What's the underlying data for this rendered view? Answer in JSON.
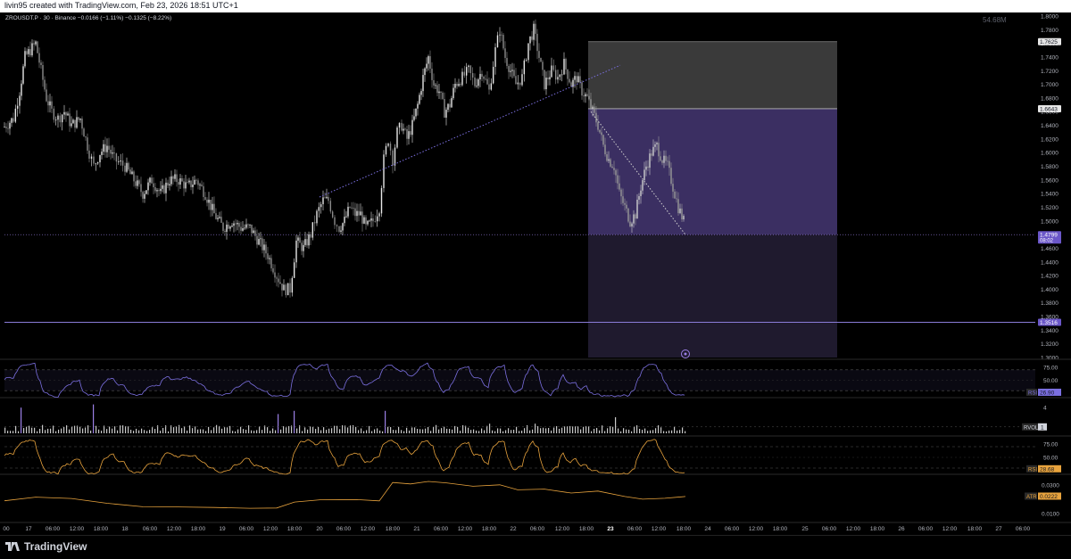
{
  "header": {
    "attribution": "livin95 created with TradingView.com, Feb 23, 2026 18:51 UTC+1"
  },
  "footer": {
    "brand": "TradingView"
  },
  "chart_data": [
    {
      "type": "candlestick",
      "symbol_line": {
        "symbol": "ZROUSDT.P",
        "interval": "30",
        "exchange": "Binance",
        "change": "−0.0166 (−1.11%)",
        "change_period": "−0.1325 (−8.22%)"
      },
      "volume_watermark": "54.68M",
      "yaxis_ticks": [
        "1.8000",
        "1.7800",
        "1.7600",
        "1.7400",
        "1.7200",
        "1.7000",
        "1.6800",
        "1.6600",
        "1.6400",
        "1.6200",
        "1.6000",
        "1.5800",
        "1.5600",
        "1.5400",
        "1.5200",
        "1.5000",
        "1.4800",
        "1.4600",
        "1.4400",
        "1.4200",
        "1.4000",
        "1.3800",
        "1.3600",
        "1.3400",
        "1.3200",
        "1.3000"
      ],
      "ylim": [
        1.3,
        1.8
      ],
      "price_labels": [
        {
          "value": 1.7625,
          "text": "1.7625",
          "color": "#d1d4dc"
        },
        {
          "value": 1.6643,
          "text": "1.6643",
          "color": "#d1d4dc"
        },
        {
          "value": 1.4799,
          "text": "1.4799",
          "sub": "08:02",
          "color": "#9b7fe6"
        },
        {
          "value": 1.3516,
          "text": "1.3516",
          "color": "#9b7fe6"
        }
      ],
      "position_tool": {
        "x_start": 659,
        "x_end": 938,
        "stop": 1.7625,
        "entry": 1.6643,
        "target": 1.3516,
        "last": 1.4799
      },
      "trendlines": [
        {
          "from": [
            358,
            1.535
          ],
          "to": [
            695,
            1.728
          ],
          "color": "#7b6fe0"
        },
        {
          "from": [
            662,
            1.66
          ],
          "to": [
            768,
            1.48
          ],
          "color": "#cfcfcf"
        }
      ],
      "close_path": [
        [
          5,
          1.638
        ],
        [
          15,
          1.65
        ],
        [
          22,
          1.69
        ],
        [
          28,
          1.74
        ],
        [
          34,
          1.75
        ],
        [
          40,
          1.76
        ],
        [
          46,
          1.72
        ],
        [
          52,
          1.68
        ],
        [
          58,
          1.66
        ],
        [
          65,
          1.65
        ],
        [
          72,
          1.66
        ],
        [
          80,
          1.64
        ],
        [
          90,
          1.65
        ],
        [
          100,
          1.6
        ],
        [
          105,
          1.58
        ],
        [
          112,
          1.6
        ],
        [
          120,
          1.61
        ],
        [
          128,
          1.59
        ],
        [
          140,
          1.58
        ],
        [
          150,
          1.56
        ],
        [
          160,
          1.54
        ],
        [
          170,
          1.56
        ],
        [
          180,
          1.54
        ],
        [
          190,
          1.56
        ],
        [
          200,
          1.56
        ],
        [
          210,
          1.55
        ],
        [
          220,
          1.56
        ],
        [
          230,
          1.54
        ],
        [
          240,
          1.51
        ],
        [
          250,
          1.49
        ],
        [
          260,
          1.5
        ],
        [
          270,
          1.49
        ],
        [
          280,
          1.49
        ],
        [
          290,
          1.47
        ],
        [
          300,
          1.45
        ],
        [
          310,
          1.42
        ],
        [
          318,
          1.4
        ],
        [
          325,
          1.4
        ],
        [
          332,
          1.47
        ],
        [
          340,
          1.46
        ],
        [
          348,
          1.48
        ],
        [
          355,
          1.51
        ],
        [
          362,
          1.53
        ],
        [
          368,
          1.53
        ],
        [
          375,
          1.5
        ],
        [
          380,
          1.49
        ],
        [
          386,
          1.5
        ],
        [
          392,
          1.52
        ],
        [
          398,
          1.51
        ],
        [
          404,
          1.51
        ],
        [
          410,
          1.49
        ],
        [
          418,
          1.5
        ],
        [
          425,
          1.52
        ],
        [
          430,
          1.59
        ],
        [
          435,
          1.62
        ],
        [
          440,
          1.59
        ],
        [
          445,
          1.63
        ],
        [
          450,
          1.64
        ],
        [
          456,
          1.62
        ],
        [
          462,
          1.64
        ],
        [
          468,
          1.67
        ],
        [
          474,
          1.71
        ],
        [
          480,
          1.74
        ],
        [
          486,
          1.7
        ],
        [
          492,
          1.69
        ],
        [
          498,
          1.66
        ],
        [
          504,
          1.67
        ],
        [
          510,
          1.7
        ],
        [
          518,
          1.71
        ],
        [
          525,
          1.72
        ],
        [
          532,
          1.7
        ],
        [
          540,
          1.72
        ],
        [
          548,
          1.69
        ],
        [
          555,
          1.75
        ],
        [
          560,
          1.78
        ],
        [
          566,
          1.74
        ],
        [
          572,
          1.72
        ],
        [
          578,
          1.7
        ],
        [
          585,
          1.71
        ],
        [
          592,
          1.76
        ],
        [
          598,
          1.78
        ],
        [
          604,
          1.74
        ],
        [
          610,
          1.7
        ],
        [
          618,
          1.72
        ],
        [
          625,
          1.71
        ],
        [
          632,
          1.73
        ],
        [
          640,
          1.7
        ],
        [
          646,
          1.71
        ],
        [
          652,
          1.69
        ],
        [
          658,
          1.68
        ],
        [
          664,
          1.66
        ],
        [
          670,
          1.64
        ],
        [
          676,
          1.61
        ],
        [
          682,
          1.59
        ],
        [
          688,
          1.58
        ],
        [
          694,
          1.54
        ],
        [
          700,
          1.52
        ],
        [
          706,
          1.5
        ],
        [
          712,
          1.51
        ],
        [
          718,
          1.55
        ],
        [
          724,
          1.58
        ],
        [
          730,
          1.6
        ],
        [
          736,
          1.61
        ],
        [
          742,
          1.59
        ],
        [
          748,
          1.58
        ],
        [
          754,
          1.55
        ],
        [
          760,
          1.52
        ],
        [
          766,
          1.5
        ],
        [
          768,
          1.48
        ]
      ],
      "xaxis_ticks": [
        {
          "x": 7,
          "label": "00"
        },
        {
          "x": 32,
          "label": "17"
        },
        {
          "x": 59,
          "label": "06:00"
        },
        {
          "x": 86,
          "label": "12:00"
        },
        {
          "x": 113,
          "label": "18:00"
        },
        {
          "x": 140,
          "label": "18"
        },
        {
          "x": 168,
          "label": "06:00"
        },
        {
          "x": 195,
          "label": "12:00"
        },
        {
          "x": 222,
          "label": "18:00"
        },
        {
          "x": 249,
          "label": "19"
        },
        {
          "x": 276,
          "label": "06:00"
        },
        {
          "x": 303,
          "label": "12:00"
        },
        {
          "x": 330,
          "label": "18:00"
        },
        {
          "x": 358,
          "label": "20"
        },
        {
          "x": 385,
          "label": "06:00"
        },
        {
          "x": 412,
          "label": "12:00"
        },
        {
          "x": 440,
          "label": "18:00"
        },
        {
          "x": 467,
          "label": "21"
        },
        {
          "x": 494,
          "label": "06:00"
        },
        {
          "x": 521,
          "label": "12:00"
        },
        {
          "x": 548,
          "label": "18:00"
        },
        {
          "x": 575,
          "label": "22"
        },
        {
          "x": 602,
          "label": "06:00"
        },
        {
          "x": 630,
          "label": "12:00"
        },
        {
          "x": 657,
          "label": "18:00"
        },
        {
          "x": 684,
          "label": "23",
          "bold": true
        },
        {
          "x": 711,
          "label": "06:00"
        },
        {
          "x": 738,
          "label": "12:00"
        },
        {
          "x": 766,
          "label": "18:00"
        },
        {
          "x": 793,
          "label": "24"
        },
        {
          "x": 820,
          "label": "06:00"
        },
        {
          "x": 847,
          "label": "12:00"
        },
        {
          "x": 874,
          "label": "18:00"
        },
        {
          "x": 902,
          "label": "25"
        },
        {
          "x": 929,
          "label": "06:00"
        },
        {
          "x": 956,
          "label": "12:00"
        },
        {
          "x": 983,
          "label": "18:00"
        },
        {
          "x": 1010,
          "label": "26"
        },
        {
          "x": 1037,
          "label": "06:00"
        },
        {
          "x": 1064,
          "label": "12:00"
        },
        {
          "x": 1092,
          "label": "18:00"
        },
        {
          "x": 1119,
          "label": "27"
        },
        {
          "x": 1146,
          "label": "06:00"
        }
      ]
    },
    {
      "type": "line",
      "name": "RSI",
      "ticks": [
        "75.00",
        "50.00"
      ],
      "ylim": [
        20,
        85
      ],
      "color": "#7b6fe0",
      "label": "RSI",
      "value": "26.90",
      "path_x_from_price": true
    },
    {
      "type": "bar",
      "name": "RVOL",
      "ticks": [
        "4"
      ],
      "label": "RVOL",
      "value": "1",
      "spikes": [
        [
          22,
          4.0
        ],
        [
          103,
          4.5
        ],
        [
          312,
          3.0
        ],
        [
          330,
          3.5
        ],
        [
          432,
          3.5
        ],
        [
          690,
          2.5
        ],
        [
          599,
          1.5
        ],
        [
          548,
          1.5
        ]
      ]
    },
    {
      "type": "line",
      "name": "RSI",
      "ticks": [
        "75.00",
        "50.00"
      ],
      "ylim": [
        20,
        85
      ],
      "color": "#e8a33d",
      "label": "RSI",
      "value": "28.68"
    },
    {
      "type": "line",
      "name": "ATR",
      "ticks": [
        "0.0300",
        "0.0100"
      ],
      "ylim": [
        0.005,
        0.035
      ],
      "color": "#e8a33d",
      "label": "ATR",
      "value": "0.0222",
      "path": [
        [
          5,
          0.019
        ],
        [
          40,
          0.0215
        ],
        [
          80,
          0.0205
        ],
        [
          120,
          0.0175
        ],
        [
          160,
          0.015
        ],
        [
          200,
          0.0145
        ],
        [
          240,
          0.014
        ],
        [
          280,
          0.0135
        ],
        [
          310,
          0.014
        ],
        [
          330,
          0.018
        ],
        [
          360,
          0.02
        ],
        [
          400,
          0.0195
        ],
        [
          425,
          0.019
        ],
        [
          440,
          0.032
        ],
        [
          460,
          0.0305
        ],
        [
          480,
          0.0325
        ],
        [
          500,
          0.0315
        ],
        [
          530,
          0.029
        ],
        [
          560,
          0.03
        ],
        [
          580,
          0.0265
        ],
        [
          610,
          0.027
        ],
        [
          640,
          0.0245
        ],
        [
          670,
          0.026
        ],
        [
          700,
          0.022
        ],
        [
          720,
          0.02
        ],
        [
          745,
          0.021
        ],
        [
          768,
          0.0222
        ]
      ]
    }
  ]
}
